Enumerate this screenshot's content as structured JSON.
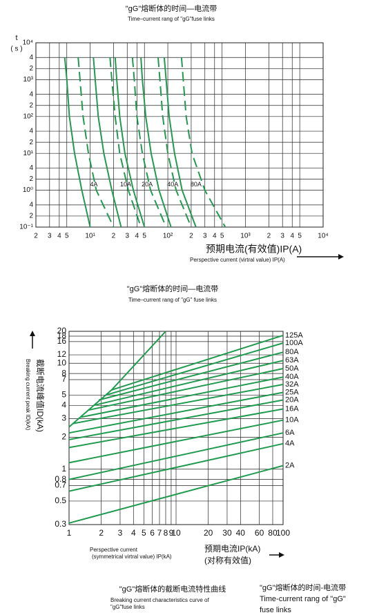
{
  "chart_data": [
    {
      "type": "line",
      "title": "\"gG\"熔断体的时间—电流带",
      "subtitle": "Time–current rang of \"gG\"fuse links",
      "ylabel": "t",
      "ylabel_unit": "( s )",
      "xlabel": "预期电流(有效值)IP(A)",
      "xlabel_en": "Perspective current (virtral value) IP(A)",
      "log": true,
      "grid": true,
      "xlim": [
        2,
        10000
      ],
      "xticks": [
        2,
        3,
        4,
        5,
        {
          "value": 10,
          "label": "10¹"
        },
        {
          "value": 20,
          "label": "2"
        },
        {
          "value": 30,
          "label": "3"
        },
        {
          "value": 40,
          "label": "4"
        },
        {
          "value": 50,
          "label": "5"
        },
        {
          "value": 100,
          "label": "10²"
        },
        {
          "value": 200,
          "label": "2"
        },
        {
          "value": 300,
          "label": "3"
        },
        {
          "value": 400,
          "label": "4"
        },
        {
          "value": 500,
          "label": "5"
        },
        {
          "value": 1000,
          "label": "10³"
        },
        {
          "value": 2000,
          "label": "2"
        },
        {
          "value": 3000,
          "label": "3"
        },
        {
          "value": 4000,
          "label": "4"
        },
        {
          "value": 5000,
          "label": "5"
        },
        {
          "value": 10000,
          "label": "10⁴"
        }
      ],
      "ylim": [
        0.1,
        10000
      ],
      "yticks": [
        {
          "value": 10000,
          "label": "10⁴"
        },
        {
          "value": 4000,
          "label": "4"
        },
        {
          "value": 2000,
          "label": "2"
        },
        {
          "value": 1000,
          "label": "10³"
        },
        {
          "value": 400,
          "label": "4"
        },
        {
          "value": 200,
          "label": "2"
        },
        {
          "value": 100,
          "label": "10²"
        },
        {
          "value": 40,
          "label": "4"
        },
        {
          "value": 20,
          "label": "2"
        },
        {
          "value": 10,
          "label": "10¹"
        },
        4,
        2,
        {
          "value": 1,
          "label": "10⁰"
        },
        {
          "value": 0.4,
          "label": "4"
        },
        {
          "value": 0.2,
          "label": "2"
        },
        {
          "value": 0.1,
          "label": "10⁻¹"
        }
      ],
      "t": [
        4000,
        1000,
        100,
        10,
        1,
        0.1
      ],
      "series": [
        {
          "name": "4A",
          "color": "#1f9a4e",
          "min": [
            4.7,
            5,
            5.4,
            6.3,
            7.8,
            10
          ],
          "max": [
            7,
            7.4,
            8.1,
            9.5,
            12,
            20
          ]
        },
        {
          "name": "10A",
          "color": "#1f9a4e",
          "min": [
            11,
            11.6,
            12.7,
            15,
            19,
            25
          ],
          "max": [
            18,
            19,
            21,
            24,
            31,
            45
          ]
        },
        {
          "name": "20A",
          "color": "#1f9a4e",
          "min": [
            21,
            22,
            24,
            28,
            36,
            50
          ],
          "max": [
            35,
            37,
            40,
            47,
            60,
            95
          ]
        },
        {
          "name": "40A",
          "color": "#1f9a4e",
          "min": [
            45,
            47,
            52,
            61,
            77,
            110
          ],
          "max": [
            75,
            79,
            86,
            100,
            128,
            200
          ]
        },
        {
          "name": "80A",
          "color": "#1f9a4e",
          "min": [
            90,
            95,
            104,
            122,
            153,
            230
          ],
          "max": [
            150,
            158,
            172,
            205,
            300,
            550
          ]
        }
      ]
    },
    {
      "type": "line",
      "title": "\"gG\"熔断体的时间—电流带",
      "subtitle": "Time–current rang of \"gG\" fuse links",
      "ylabel": "截断电流峰值ID(kA)",
      "ylabel_en": "Breaking current peak ID(kA)",
      "xlabel": "预期电流IP(kA)",
      "xlabel_note": "(对称有效值)",
      "xlabel_en": [
        "Perspective current",
        "(symmetrical virtral value) IP(kA)"
      ],
      "log": true,
      "grid": true,
      "xlim": [
        1,
        100
      ],
      "xticks": [
        1,
        2,
        3,
        4,
        5,
        6,
        7,
        8,
        9,
        10,
        20,
        30,
        40,
        60,
        80,
        100
      ],
      "ylim": [
        0.3,
        20
      ],
      "yticks": [
        20,
        18,
        16,
        12,
        10,
        8,
        7,
        5,
        4,
        3,
        2,
        1,
        0.8,
        0.7,
        0.5,
        0.3
      ],
      "envelope": {
        "color": "#1f9a4e",
        "x": [
          1,
          2.5,
          8
        ],
        "values": [
          2.5,
          5.6,
          20
        ]
      },
      "series": [
        {
          "name": "125A",
          "color": "#1f9a4e",
          "x": [
            2.5,
            100
          ],
          "values": [
            5.6,
            18.3
          ]
        },
        {
          "name": "100A",
          "color": "#1f9a4e",
          "x": [
            2.2,
            100
          ],
          "values": [
            5,
            15.5
          ]
        },
        {
          "name": "80A",
          "color": "#1f9a4e",
          "x": [
            1.9,
            100
          ],
          "values": [
            4.5,
            12.7
          ]
        },
        {
          "name": "63A",
          "color": "#1f9a4e",
          "x": [
            1.7,
            100
          ],
          "values": [
            4,
            10.6
          ]
        },
        {
          "name": "50A",
          "color": "#1f9a4e",
          "x": [
            1.5,
            100
          ],
          "values": [
            3.6,
            8.9
          ]
        },
        {
          "name": "40A",
          "color": "#1f9a4e",
          "x": [
            1.3,
            100
          ],
          "values": [
            3.1,
            7.4
          ]
        },
        {
          "name": "32A",
          "color": "#1f9a4e",
          "x": [
            1.1,
            100
          ],
          "values": [
            2.7,
            6.3
          ]
        },
        {
          "name": "25A",
          "color": "#1f9a4e",
          "x": [
            1,
            100
          ],
          "values": [
            2.2,
            5.3
          ]
        },
        {
          "name": "20A",
          "color": "#1f9a4e",
          "x": [
            1,
            100
          ],
          "values": [
            1.9,
            4.5
          ]
        },
        {
          "name": "16A",
          "color": "#1f9a4e",
          "x": [
            1,
            100
          ],
          "values": [
            1.6,
            3.7
          ]
        },
        {
          "name": "10A",
          "color": "#1f9a4e",
          "x": [
            1,
            100
          ],
          "values": [
            1.15,
            2.9
          ]
        },
        {
          "name": "6A",
          "color": "#1f9a4e",
          "x": [
            1,
            100
          ],
          "values": [
            0.8,
            2.2
          ]
        },
        {
          "name": "4A",
          "color": "#1f9a4e",
          "x": [
            1,
            100
          ],
          "values": [
            0.62,
            1.74
          ]
        },
        {
          "name": "2A",
          "color": "#1f9a4e",
          "x": [
            1,
            100
          ],
          "values": [
            0.31,
            1.08
          ]
        }
      ]
    }
  ],
  "captions": {
    "left": [
      "\"gG\"熔断体的截断电流特性曲线",
      "Breaking current characteristics curve of",
      "\"gG\"fuse links"
    ],
    "right": [
      "\"gG\"熔断体的时间-电流带",
      "Time-current rang of \"gG\"",
      "fuse links"
    ]
  }
}
